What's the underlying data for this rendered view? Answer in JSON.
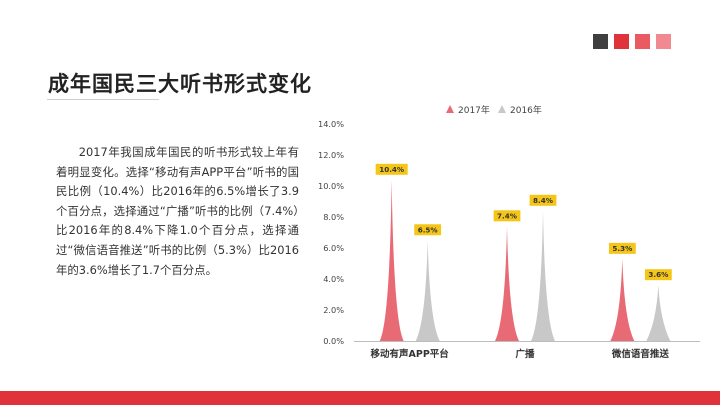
{
  "slide": {
    "title": "成年国民三大听书形式变化",
    "paragraph": "2017年我国成年国民的听书形式较上年有着明显变化。选择“移动有声APP平台”听书的国民比例（10.4%）比2016年的6.5%增长了3.9个百分点，选择通过“广播”听书的比例（7.4%）比2016年的8.4%下降1.0个百分点，选择通过“微信语音推送”听书的比例（5.3%）比2016年的3.6%增长了1.7个百分点。"
  },
  "colors": {
    "accent": "#e0323a",
    "square_dark": "#3f3f3f",
    "square_red": "#e0323a",
    "square_mid": "#ea5a62",
    "square_light": "#f08a90",
    "series_2017": "#e86a75",
    "series_2016": "#c8c8c8",
    "label_bg": "#f5c518"
  },
  "chart_data": {
    "type": "bar",
    "categories": [
      "移动有声APP平台",
      "广播",
      "微信语音推送"
    ],
    "series": [
      {
        "name": "2017年",
        "values": [
          10.4,
          7.4,
          5.3
        ],
        "labels": [
          "10.4%",
          "7.4%",
          "5.3%"
        ]
      },
      {
        "name": "2016年",
        "values": [
          6.5,
          8.4,
          3.6
        ],
        "labels": [
          "6.5%",
          "8.4%",
          "3.6%"
        ]
      }
    ],
    "y_ticks": [
      "0.0%",
      "2.0%",
      "4.0%",
      "6.0%",
      "8.0%",
      "10.0%",
      "12.0%",
      "14.0%"
    ],
    "ylim": [
      0,
      14
    ],
    "grid": false,
    "legend_position": "top-right",
    "mark_shape": "cone",
    "title": "",
    "xlabel": "",
    "ylabel": ""
  }
}
